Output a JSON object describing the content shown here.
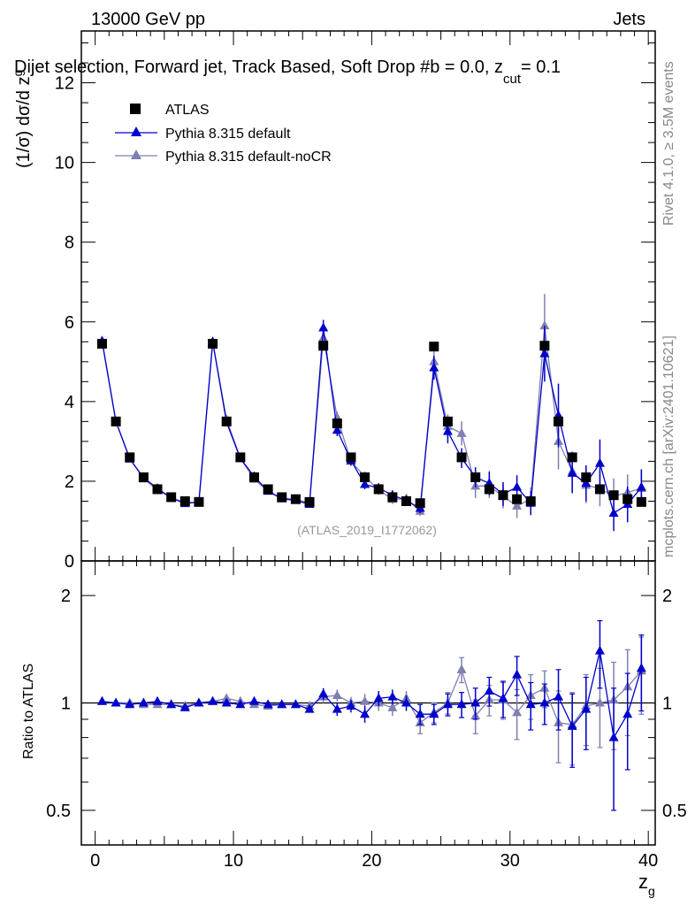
{
  "header": {
    "left": "13000 GeV pp",
    "right": "Jets",
    "title": "Dijet selection, Forward jet, Track Based, Soft Drop #b = 0.0, z",
    "title_sub": "cut",
    "title_end": "= 0.1"
  },
  "side_labels": {
    "rivet": "Rivet 4.1.0, ≥ 3.5M events",
    "mcplots": "mcplots.cern.ch [arXiv:2401.10621]"
  },
  "watermark": "(ATLAS_2019_I1772062)",
  "colors": {
    "atlas": "#000000",
    "default": "#0000cc",
    "nocr": "#7f7fb2"
  },
  "chart_data": [
    {
      "type": "scatter",
      "panel": "main",
      "ylabel": "(1/σ) dσ/d z",
      "ylabel_sub": "g",
      "xlabel": "z",
      "xlabel_sub": "g",
      "xlim": [
        -1,
        40.5
      ],
      "ylim": [
        0,
        13.3
      ],
      "x_ticks": [
        0,
        10,
        20,
        30,
        40
      ],
      "y_ticks": [
        0,
        2,
        4,
        6,
        8,
        10,
        12
      ],
      "y_tick_labels": [
        "0",
        "2",
        "4",
        "6",
        "8",
        "10",
        "12"
      ],
      "x": [
        0.5,
        1.5,
        2.5,
        3.5,
        4.5,
        5.5,
        6.5,
        7.5,
        8.5,
        9.5,
        10.5,
        11.5,
        12.5,
        13.5,
        14.5,
        15.5,
        16.5,
        17.5,
        18.5,
        19.5,
        20.5,
        21.5,
        22.5,
        23.5,
        24.5,
        25.5,
        26.5,
        27.5,
        28.5,
        29.5,
        30.5,
        31.5,
        32.5,
        33.5,
        34.5,
        35.5,
        36.5,
        37.5,
        38.5,
        39.5
      ],
      "legend": [
        "ATLAS",
        "Pythia 8.315 default",
        "Pythia 8.315 default-noCR"
      ],
      "series": [
        {
          "name": "ATLAS",
          "marker": "square",
          "values": [
            5.45,
            3.5,
            2.6,
            2.1,
            1.8,
            1.6,
            1.5,
            1.48,
            5.45,
            3.5,
            2.6,
            2.1,
            1.8,
            1.6,
            1.55,
            1.48,
            5.4,
            3.45,
            2.6,
            2.1,
            1.8,
            1.6,
            1.5,
            1.45,
            5.38,
            3.5,
            2.6,
            2.1,
            1.8,
            1.65,
            1.55,
            1.5,
            5.4,
            3.5,
            2.6,
            2.1,
            1.8,
            1.65,
            1.55,
            1.48
          ],
          "errors": [
            0,
            0,
            0,
            0,
            0,
            0,
            0,
            0,
            0,
            0,
            0,
            0,
            0,
            0,
            0,
            0,
            0,
            0,
            0,
            0,
            0,
            0,
            0,
            0,
            0,
            0,
            0,
            0,
            0,
            0,
            0,
            0,
            0,
            0,
            0,
            0,
            0,
            0,
            0,
            0
          ]
        },
        {
          "name": "Pythia 8.315 default",
          "marker": "triangle",
          "values": [
            5.52,
            3.5,
            2.56,
            2.09,
            1.82,
            1.58,
            1.44,
            1.48,
            5.5,
            3.48,
            2.57,
            2.12,
            1.75,
            1.56,
            1.52,
            1.42,
            5.85,
            3.28,
            2.52,
            1.92,
            1.83,
            1.65,
            1.52,
            1.32,
            4.85,
            3.25,
            2.58,
            2.1,
            1.95,
            1.68,
            1.85,
            1.45,
            5.2,
            3.65,
            2.2,
            1.95,
            2.45,
            1.2,
            1.42,
            1.85
          ],
          "errors": [
            0.05,
            0.05,
            0.04,
            0.04,
            0.04,
            0.04,
            0.04,
            0.04,
            0.1,
            0.08,
            0.07,
            0.06,
            0.05,
            0.05,
            0.05,
            0.05,
            0.2,
            0.15,
            0.12,
            0.12,
            0.12,
            0.12,
            0.12,
            0.12,
            0.3,
            0.3,
            0.25,
            0.25,
            0.3,
            0.3,
            0.3,
            0.3,
            0.7,
            0.8,
            0.5,
            0.45,
            0.6,
            0.45,
            0.45,
            0.45
          ]
        },
        {
          "name": "Pythia 8.315 default-noCR",
          "marker": "triangle",
          "values": [
            5.5,
            3.5,
            2.58,
            2.06,
            1.78,
            1.59,
            1.46,
            1.48,
            5.5,
            3.55,
            2.58,
            2.05,
            1.75,
            1.58,
            1.55,
            1.45,
            5.6,
            3.6,
            2.5,
            2.12,
            1.78,
            1.55,
            1.56,
            1.25,
            5.0,
            3.38,
            3.2,
            1.88,
            1.88,
            1.62,
            1.38,
            1.55,
            5.9,
            3.0,
            2.25,
            1.9,
            1.82,
            1.62,
            1.72,
            1.82
          ],
          "errors": [
            0.05,
            0.05,
            0.04,
            0.04,
            0.04,
            0.04,
            0.04,
            0.04,
            0.1,
            0.08,
            0.07,
            0.06,
            0.05,
            0.05,
            0.05,
            0.05,
            0.2,
            0.15,
            0.12,
            0.12,
            0.12,
            0.12,
            0.12,
            0.12,
            0.3,
            0.3,
            0.3,
            0.3,
            0.3,
            0.3,
            0.3,
            0.3,
            0.8,
            0.7,
            0.5,
            0.45,
            0.45,
            0.45,
            0.45,
            0.45
          ]
        }
      ]
    },
    {
      "type": "scatter",
      "panel": "ratio",
      "ylabel": "Ratio to ATLAS",
      "xlim": [
        -1,
        40.5
      ],
      "yscale": "log",
      "ylim": [
        0.4,
        2.5
      ],
      "y_ticks": [
        0.5,
        1,
        2
      ],
      "y_tick_labels": [
        "0.5",
        "1",
        "2"
      ],
      "x_tick_labels": [
        "0",
        "10",
        "20",
        "30",
        "40"
      ],
      "x": [
        0.5,
        1.5,
        2.5,
        3.5,
        4.5,
        5.5,
        6.5,
        7.5,
        8.5,
        9.5,
        10.5,
        11.5,
        12.5,
        13.5,
        14.5,
        15.5,
        16.5,
        17.5,
        18.5,
        19.5,
        20.5,
        21.5,
        22.5,
        23.5,
        24.5,
        25.5,
        26.5,
        27.5,
        28.5,
        29.5,
        30.5,
        31.5,
        32.5,
        33.5,
        34.5,
        35.5,
        36.5,
        37.5,
        38.5,
        39.5
      ],
      "series": [
        {
          "name": "Pythia 8.315 default",
          "values": [
            1.01,
            1.0,
            0.99,
            1.0,
            1.01,
            0.99,
            0.97,
            1.0,
            1.01,
            1.0,
            0.99,
            1.01,
            0.99,
            0.99,
            0.99,
            0.96,
            1.06,
            0.96,
            0.98,
            0.93,
            1.03,
            1.04,
            1.0,
            0.93,
            0.93,
            0.99,
            0.99,
            1.0,
            1.08,
            1.03,
            1.2,
            0.99,
            1.0,
            1.04,
            0.86,
            0.96,
            1.4,
            0.8,
            0.93,
            1.25
          ],
          "errors": [
            0.01,
            0.01,
            0.01,
            0.01,
            0.01,
            0.01,
            0.01,
            0.01,
            0.02,
            0.02,
            0.02,
            0.02,
            0.02,
            0.02,
            0.02,
            0.02,
            0.04,
            0.04,
            0.04,
            0.05,
            0.05,
            0.05,
            0.05,
            0.06,
            0.06,
            0.07,
            0.08,
            0.1,
            0.1,
            0.12,
            0.15,
            0.15,
            0.13,
            0.2,
            0.2,
            0.22,
            0.3,
            0.3,
            0.28,
            0.3
          ]
        },
        {
          "name": "Pythia 8.315 default-noCR",
          "values": [
            1.01,
            1.0,
            1.0,
            0.99,
            0.99,
            0.99,
            0.98,
            1.0,
            1.01,
            1.03,
            1.01,
            0.99,
            0.98,
            0.99,
            0.99,
            0.98,
            1.04,
            1.05,
            1.0,
            1.01,
            1.0,
            0.97,
            1.03,
            0.88,
            0.94,
            1.0,
            1.24,
            0.92,
            1.02,
            1.02,
            0.94,
            1.05,
            1.1,
            0.88,
            0.87,
            0.98,
            1.0,
            1.02,
            1.11,
            1.23
          ],
          "errors": [
            0.01,
            0.01,
            0.01,
            0.01,
            0.01,
            0.01,
            0.01,
            0.01,
            0.02,
            0.02,
            0.02,
            0.02,
            0.02,
            0.02,
            0.02,
            0.02,
            0.04,
            0.04,
            0.04,
            0.05,
            0.05,
            0.05,
            0.05,
            0.06,
            0.06,
            0.07,
            0.1,
            0.1,
            0.1,
            0.12,
            0.15,
            0.15,
            0.13,
            0.2,
            0.2,
            0.22,
            0.25,
            0.28,
            0.3,
            0.3
          ]
        }
      ]
    }
  ]
}
